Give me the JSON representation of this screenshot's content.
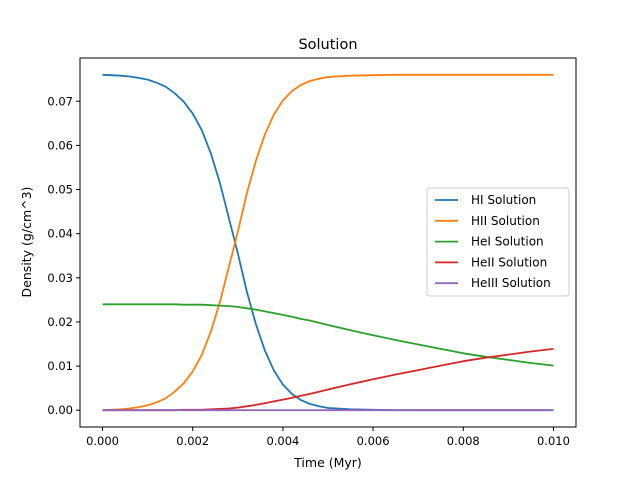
{
  "chart_data": {
    "type": "line",
    "title": "Solution",
    "xlabel": "Time (Myr)",
    "ylabel": "Density (g/cm^3)",
    "xlim": [
      -0.0005,
      0.0105
    ],
    "ylim": [
      -0.0038,
      0.0798
    ],
    "xticks": [
      0.0,
      0.002,
      0.004,
      0.006,
      0.008,
      0.01
    ],
    "xtick_labels": [
      "0.000",
      "0.002",
      "0.004",
      "0.006",
      "0.008",
      "0.010"
    ],
    "yticks": [
      0.0,
      0.01,
      0.02,
      0.03,
      0.04,
      0.05,
      0.06,
      0.07
    ],
    "ytick_labels": [
      "0.00",
      "0.01",
      "0.02",
      "0.03",
      "0.04",
      "0.05",
      "0.06",
      "0.07"
    ],
    "grid": false,
    "legend_position": "center-right",
    "x": [
      0.0,
      0.0002,
      0.0004,
      0.0006,
      0.0008,
      0.001,
      0.0012,
      0.0014,
      0.0016,
      0.0018,
      0.002,
      0.0022,
      0.0024,
      0.0026,
      0.0028,
      0.003,
      0.0032,
      0.0034,
      0.0036,
      0.0038,
      0.004,
      0.0042,
      0.0044,
      0.0046,
      0.0048,
      0.005,
      0.0055,
      0.006,
      0.0065,
      0.007,
      0.0075,
      0.008,
      0.0085,
      0.009,
      0.0095,
      0.01
    ],
    "series": [
      {
        "name": "HI Solution",
        "color": "#1f77b4",
        "values": [
          0.076,
          0.0759,
          0.0758,
          0.0756,
          0.0753,
          0.0749,
          0.0742,
          0.0733,
          0.0718,
          0.0699,
          0.0672,
          0.0635,
          0.0582,
          0.0516,
          0.0436,
          0.0356,
          0.0269,
          0.0195,
          0.0135,
          0.009,
          0.0058,
          0.0037,
          0.0023,
          0.0014,
          0.0009,
          0.0005,
          0.0002,
          0.0001,
          0.0,
          0.0,
          0.0,
          0.0,
          0.0,
          0.0,
          0.0,
          0.0
        ]
      },
      {
        "name": "HII Solution",
        "color": "#ff7f0e",
        "values": [
          0.0,
          0.0001,
          0.0002,
          0.0004,
          0.0007,
          0.0011,
          0.0018,
          0.0027,
          0.0042,
          0.0061,
          0.0088,
          0.0125,
          0.0178,
          0.0244,
          0.0324,
          0.0404,
          0.0491,
          0.0565,
          0.0625,
          0.067,
          0.0702,
          0.0723,
          0.0737,
          0.0746,
          0.0751,
          0.0755,
          0.0758,
          0.0759,
          0.076,
          0.076,
          0.076,
          0.076,
          0.076,
          0.076,
          0.076,
          0.076
        ]
      },
      {
        "name": "HeI Solution",
        "color": "#2ca02c",
        "values": [
          0.024,
          0.024,
          0.024,
          0.024,
          0.024,
          0.024,
          0.024,
          0.024,
          0.024,
          0.0239,
          0.0239,
          0.0239,
          0.0238,
          0.0237,
          0.0236,
          0.0234,
          0.0231,
          0.0228,
          0.0224,
          0.022,
          0.0216,
          0.0212,
          0.0207,
          0.0203,
          0.0198,
          0.0193,
          0.0181,
          0.017,
          0.0159,
          0.0149,
          0.0139,
          0.0129,
          0.0121,
          0.0114,
          0.0107,
          0.0101
        ]
      },
      {
        "name": "HeII Solution",
        "color": "#d62728",
        "values": [
          0.0,
          0.0,
          0.0,
          0.0,
          0.0,
          0.0,
          0.0,
          0.0,
          0.0,
          0.0001,
          0.0001,
          0.0001,
          0.0002,
          0.0003,
          0.0004,
          0.0006,
          0.0009,
          0.0012,
          0.0016,
          0.002,
          0.0024,
          0.0028,
          0.0033,
          0.0037,
          0.0042,
          0.0047,
          0.0059,
          0.007,
          0.0081,
          0.0091,
          0.0101,
          0.0111,
          0.0119,
          0.0126,
          0.0133,
          0.0139
        ]
      },
      {
        "name": "HeIII Solution",
        "color": "#9467bd",
        "values": [
          0.0,
          0.0,
          0.0,
          0.0,
          0.0,
          0.0,
          0.0,
          0.0,
          0.0,
          0.0,
          0.0,
          0.0,
          0.0,
          0.0,
          0.0,
          0.0,
          0.0,
          0.0,
          0.0,
          0.0,
          0.0,
          0.0,
          0.0,
          0.0,
          0.0,
          0.0,
          0.0,
          0.0,
          0.0,
          0.0,
          0.0,
          0.0,
          0.0,
          0.0,
          0.0,
          0.0
        ]
      }
    ]
  }
}
